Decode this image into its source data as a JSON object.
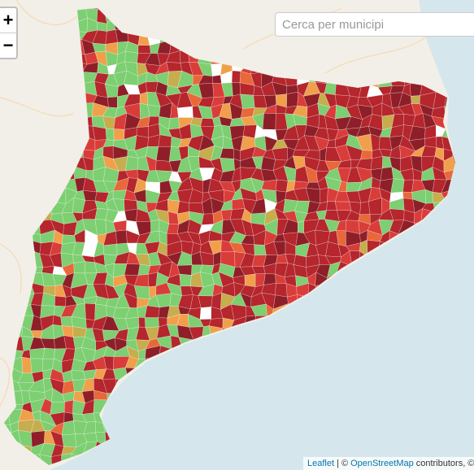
{
  "zoom": {
    "in": "+",
    "out": "−"
  },
  "search": {
    "placeholder": "Cerca per municipi"
  },
  "attribution": {
    "leaflet": "Leaflet",
    "separator": "| ©",
    "osm": "OpenStreetMap",
    "rest": "contributors, ©"
  }
}
